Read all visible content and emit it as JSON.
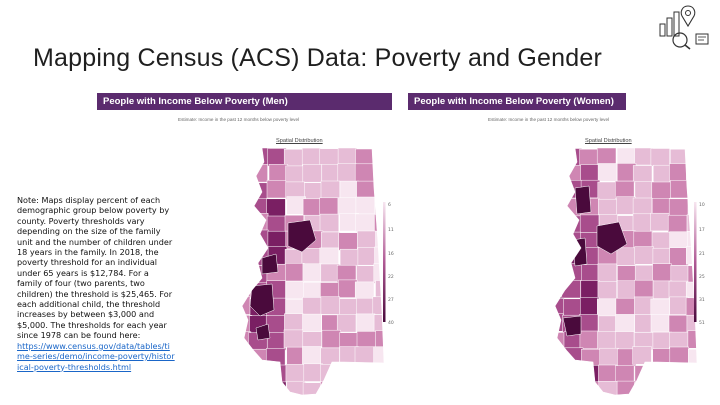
{
  "slide": {
    "title": "Mapping Census (ACS) Data: Poverty and Gender"
  },
  "note": {
    "text": "Note: Maps display percent of each demographic group below poverty by county. Poverty thresholds vary depending on the size of the family unit and the number of children under 18 years in the family. In 2018, the poverty threshold for an individual under 65 years is $12,784. For a family of four (two parents, two children) the threshold is $25,465. For each additional child, the threshold increases by between $3,000 and $5,000. The thresholds for each year since 1978 can be found here:",
    "link": "https://www.census.gov/data/tables/time-series/demo/income-poverty/historical-poverty-thresholds.html"
  },
  "panels": [
    {
      "header": "People with Income Below Poverty (Men)",
      "subtitle": "Estimate: Income in the past 12 months below poverty level",
      "dist_title": "Spatial Distribution",
      "legend_ticks": [
        "6",
        "11",
        "16",
        "22",
        "27",
        "40"
      ]
    },
    {
      "header": "People with Income Below Poverty (Women)",
      "subtitle": "Estimate: Income in the past 12 months below poverty level",
      "dist_title": "Spatial Distribution",
      "legend_ticks": [
        "10",
        "17",
        "21",
        "25",
        "31",
        "51"
      ]
    }
  ],
  "colors": {
    "header_bg": "#5b2b6e",
    "scale": [
      "#f7e6f0",
      "#e6bcd6",
      "#cf86b3",
      "#a84d8c",
      "#7a1f63",
      "#4a0a3c"
    ]
  },
  "icons": {
    "logo": "census-map-logo-icon"
  }
}
